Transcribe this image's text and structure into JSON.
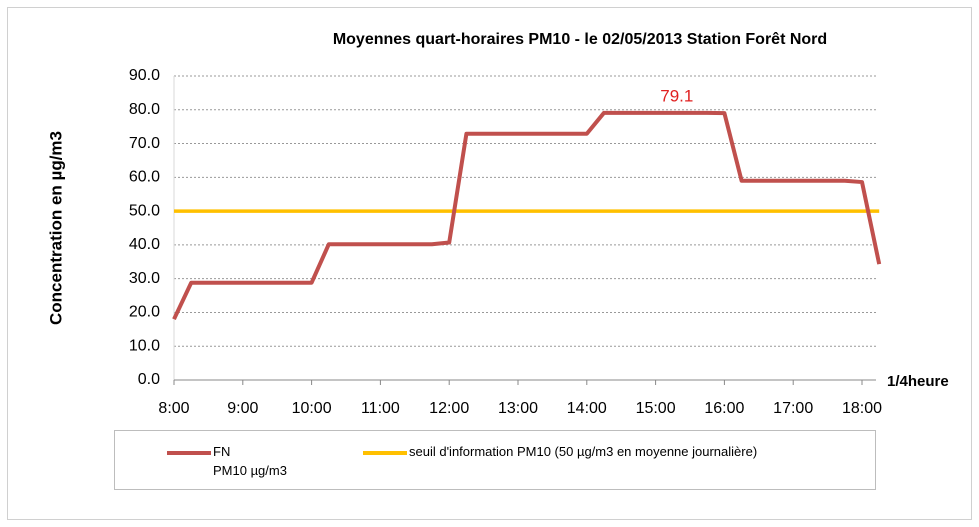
{
  "chart_data": {
    "type": "line",
    "title": "Moyennes quart-horaires PM10  -  le 02/05/2013  Station Forêt Nord",
    "y_label": "Concentration en µg/m3",
    "x_label": "1/4heure",
    "categories": [
      "8:00",
      null,
      null,
      null,
      "9:00",
      null,
      null,
      null,
      "10:00",
      null,
      null,
      null,
      "11:00",
      null,
      null,
      null,
      "12:00",
      null,
      null,
      null,
      "13:00",
      null,
      null,
      null,
      "14:00",
      null,
      null,
      null,
      "15:00",
      null,
      null,
      null,
      "16:00",
      null,
      null,
      null,
      "17:00",
      null,
      null,
      null,
      "18:00",
      null
    ],
    "series": [
      {
        "name": "FN\nPM10 µg/m3",
        "color": "#c0504d",
        "values": [
          18.0,
          28.8,
          28.8,
          28.8,
          28.8,
          28.8,
          28.8,
          28.8,
          28.8,
          40.2,
          40.2,
          40.2,
          40.2,
          40.2,
          40.2,
          40.2,
          40.7,
          72.9,
          72.9,
          72.9,
          72.9,
          72.9,
          72.9,
          72.9,
          72.9,
          79.1,
          79.1,
          79.1,
          79.1,
          79.1,
          79.1,
          79.1,
          79.0,
          59.0,
          59.0,
          59.0,
          59.0,
          59.0,
          59.0,
          59.0,
          58.6,
          34.3
        ]
      },
      {
        "name": "seuil d'information PM10 (50 µg/m3 en moyenne journalière)",
        "color": "#ffc000",
        "values": [
          50,
          50,
          50,
          50,
          50,
          50,
          50,
          50,
          50,
          50,
          50,
          50,
          50,
          50,
          50,
          50,
          50,
          50,
          50,
          50,
          50,
          50,
          50,
          50,
          50,
          50,
          50,
          50,
          50,
          50,
          50,
          50,
          50,
          50,
          50,
          50,
          50,
          50,
          50,
          50,
          50,
          50
        ]
      }
    ],
    "label_point": {
      "series": 0,
      "index": 29,
      "color": "#e02020"
    },
    "ylim": [
      0,
      90
    ],
    "yticks": [
      {
        "value": 0,
        "label": "0.0"
      },
      {
        "value": 10,
        "label": "10.0"
      },
      {
        "value": 20,
        "label": "20.0"
      },
      {
        "value": 30,
        "label": "30.0"
      },
      {
        "value": 40,
        "label": "40.0"
      },
      {
        "value": 50,
        "label": "50.0"
      },
      {
        "value": 60,
        "label": "60.0"
      },
      {
        "value": 70,
        "label": "70.0"
      },
      {
        "value": 80,
        "label": "80.0"
      },
      {
        "value": 90,
        "label": "90.0"
      }
    ],
    "grid": true,
    "legend": "bottom"
  }
}
